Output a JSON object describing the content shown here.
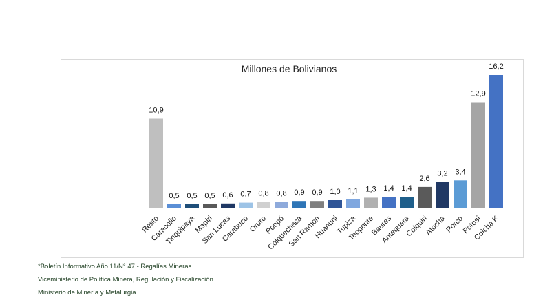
{
  "chart_data": {
    "type": "bar",
    "title": "Millones de Bolivianos",
    "xlabel": "",
    "ylabel": "",
    "ylim": [
      0,
      16.2
    ],
    "grid": false,
    "legend": "none",
    "categories": [
      "Resto",
      "Caracollo",
      "Tinquipaya",
      "Mapiri",
      "San Lucas",
      "Carabuco",
      "Oruro",
      "Poopó",
      "Colquechaca",
      "San Ramón",
      "Huanuni",
      "Tupiza",
      "Teoponte",
      "Báures",
      "Antequera",
      "Colquiri",
      "Atocha",
      "Porco",
      "Potosí",
      "Colcha K"
    ],
    "values": [
      10.9,
      0.5,
      0.5,
      0.5,
      0.6,
      0.7,
      0.8,
      0.8,
      0.9,
      0.9,
      1.0,
      1.1,
      1.3,
      1.4,
      1.4,
      2.6,
      3.2,
      3.4,
      12.9,
      16.2
    ],
    "value_labels": [
      "10,9",
      "0,5",
      "0,5",
      "0,5",
      "0,6",
      "0,7",
      "0,8",
      "0,8",
      "0,9",
      "0,9",
      "1,0",
      "1,1",
      "1,3",
      "1,4",
      "1,4",
      "2,6",
      "3,2",
      "3,4",
      "12,9",
      "16,2"
    ],
    "colors": [
      "#bfbfbf",
      "#5b8fd6",
      "#1f4e79",
      "#595959",
      "#1f3864",
      "#9dc3e6",
      "#d0d0d0",
      "#8eaadb",
      "#2e75b6",
      "#7f7f7f",
      "#2f5597",
      "#7fa7df",
      "#b0b0b0",
      "#4472c4",
      "#1f5f8b",
      "#5a5a5a",
      "#203864",
      "#5b9bd5",
      "#a5a5a5",
      "#4472c4"
    ]
  },
  "notes": [
    "*Boletín Informativo Año 11/N° 47 - Regalías Mineras",
    "Viceministerio de Política Minera, Regulación y Fiscalización",
    "Ministerio de Minería y Metalurgia"
  ]
}
